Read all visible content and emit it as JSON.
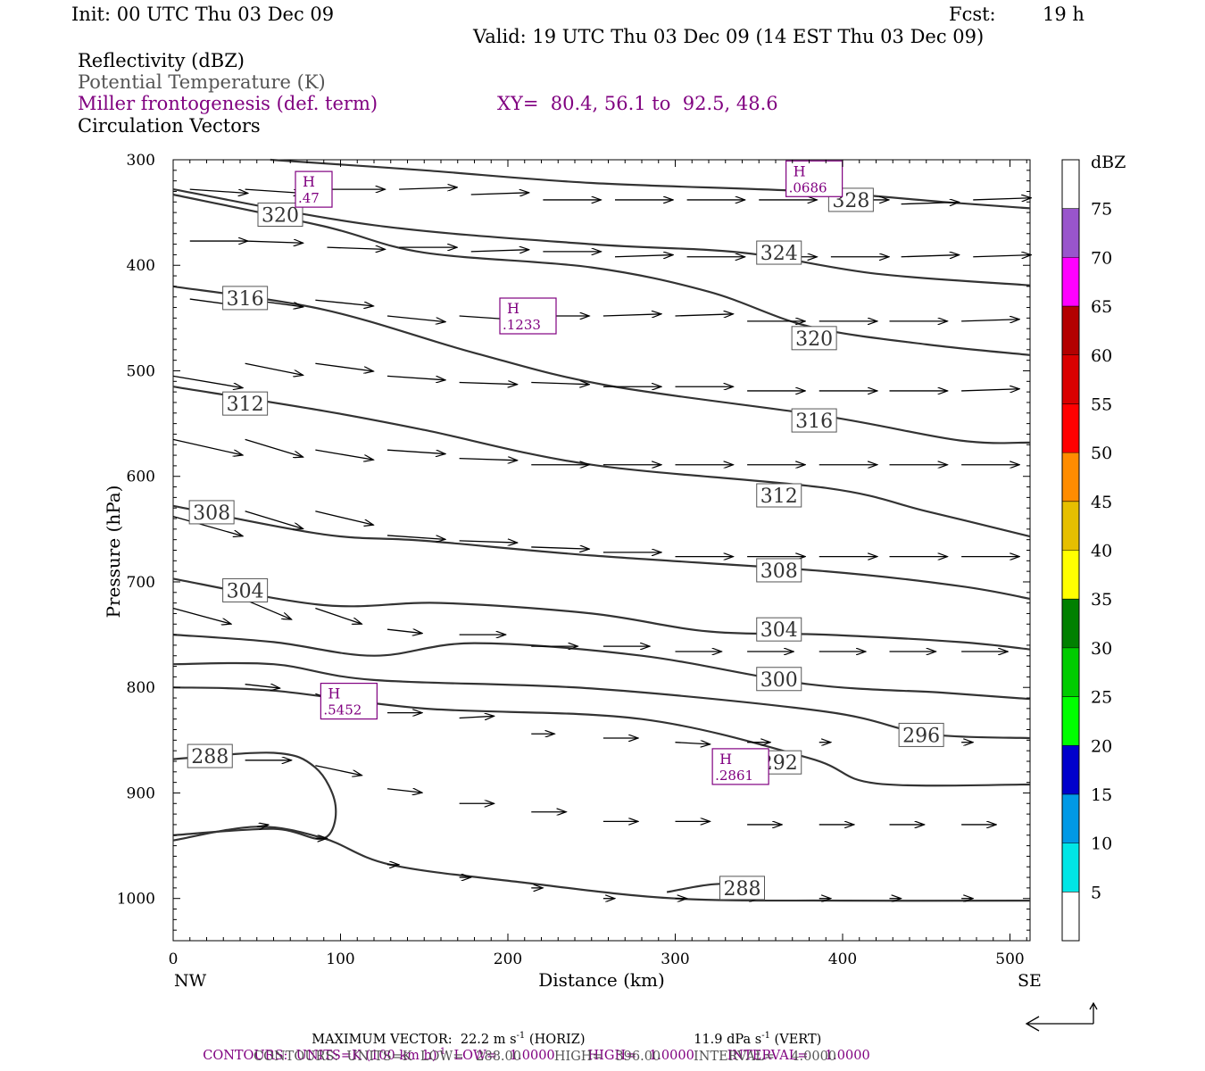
{
  "header": {
    "init": "Init: 00 UTC Thu 03 Dec 09",
    "fcst_label": "Fcst:",
    "fcst_value": "19 h",
    "valid": "Valid: 19 UTC Thu 03 Dec 09 (14 EST Thu 03 Dec 09)",
    "fields": [
      "Reflectivity (dBZ)",
      "Potential Temperature (K)",
      "Miller frontogenesis (def. term)",
      "Circulation Vectors"
    ],
    "xy": "XY=  80.4, 56.1 to  92.5, 48.6"
  },
  "colors": {
    "purple": "#800080",
    "gray_text": "#555555",
    "contour": "#333333",
    "vector": "#000000"
  },
  "chart_data": {
    "type": "cross-section",
    "xlabel": "Distance (km)",
    "ylabel": "Pressure (hPa)",
    "xlim": [
      0,
      512
    ],
    "ylim": [
      300,
      1040
    ],
    "y_log": false,
    "grid": false,
    "x_ticks": [
      0,
      100,
      200,
      300,
      400,
      500
    ],
    "y_ticks": [
      300,
      400,
      500,
      600,
      700,
      800,
      900,
      1000
    ],
    "endpoints": {
      "left": "NW",
      "right": "SE"
    },
    "theta_contours": [
      {
        "label": "328",
        "label_at": [
          405,
          338
        ],
        "points": [
          [
            58,
            300
          ],
          [
            150,
            310
          ],
          [
            250,
            322
          ],
          [
            380,
            330
          ],
          [
            460,
            340
          ],
          [
            512,
            346
          ]
        ]
      },
      {
        "label": "324",
        "label_at": [
          362,
          388
        ],
        "points": [
          [
            0,
            328
          ],
          [
            120,
            362
          ],
          [
            250,
            380
          ],
          [
            340,
            388
          ],
          [
            420,
            408
          ],
          [
            512,
            419
          ]
        ]
      },
      {
        "label": "320",
        "label_at": [
          64,
          352
        ],
        "points": [
          [
            0,
            333
          ],
          [
            90,
            363
          ],
          [
            150,
            388
          ],
          [
            250,
            402
          ],
          [
            320,
            425
          ],
          [
            380,
            458
          ],
          [
            450,
            475
          ],
          [
            512,
            485
          ]
        ]
      },
      {
        "label": "320",
        "label_at": [
          383,
          469
        ],
        "points": []
      },
      {
        "label": "316",
        "label_at": [
          43,
          431
        ],
        "points": [
          [
            0,
            420
          ],
          [
            90,
            442
          ],
          [
            180,
            483
          ],
          [
            260,
            514
          ],
          [
            390,
            543
          ],
          [
            470,
            566
          ],
          [
            512,
            568
          ]
        ]
      },
      {
        "label": "316",
        "label_at": [
          383,
          547
        ],
        "points": []
      },
      {
        "label": "312",
        "label_at": [
          43,
          531
        ],
        "points": [
          [
            0,
            515
          ],
          [
            90,
            538
          ],
          [
            150,
            556
          ],
          [
            250,
            589
          ],
          [
            390,
            611
          ],
          [
            450,
            633
          ],
          [
            512,
            657
          ]
        ]
      },
      {
        "label": "312",
        "label_at": [
          362,
          618
        ],
        "points": []
      },
      {
        "label": "308",
        "label_at": [
          23,
          634
        ],
        "points": [
          [
            0,
            628
          ],
          [
            90,
            655
          ],
          [
            150,
            661
          ],
          [
            250,
            675
          ],
          [
            390,
            690
          ],
          [
            470,
            704
          ],
          [
            512,
            716
          ]
        ]
      },
      {
        "label": "308",
        "label_at": [
          362,
          689
        ],
        "points": []
      },
      {
        "label": "304",
        "label_at": [
          43,
          708
        ],
        "points": [
          [
            0,
            697
          ],
          [
            90,
            722
          ],
          [
            160,
            720
          ],
          [
            250,
            730
          ],
          [
            320,
            747
          ],
          [
            390,
            750
          ],
          [
            470,
            757
          ],
          [
            512,
            764
          ]
        ]
      },
      {
        "label": "304",
        "label_at": [
          362,
          745
        ],
        "points": []
      },
      {
        "label": "300",
        "label_at": [
          362,
          792
        ],
        "points": [
          [
            0,
            750
          ],
          [
            60,
            757
          ],
          [
            120,
            770
          ],
          [
            180,
            758
          ],
          [
            280,
            770
          ],
          [
            380,
            797
          ],
          [
            460,
            805
          ],
          [
            512,
            811
          ]
        ]
      },
      {
        "label": "296",
        "label_at": [
          447,
          845
        ],
        "points": [
          [
            0,
            778
          ],
          [
            60,
            778
          ],
          [
            120,
            793
          ],
          [
            250,
            801
          ],
          [
            390,
            823
          ],
          [
            450,
            844
          ],
          [
            512,
            848
          ]
        ]
      },
      {
        "label": "292",
        "label_at": [
          362,
          871
        ],
        "points": [
          [
            0,
            800
          ],
          [
            60,
            803
          ],
          [
            150,
            820
          ],
          [
            280,
            830
          ],
          [
            380,
            867
          ],
          [
            420,
            891
          ],
          [
            512,
            892
          ]
        ]
      },
      {
        "label": "288",
        "label_at": [
          22,
          865
        ],
        "points": [
          [
            0,
            868
          ],
          [
            60,
            862
          ],
          [
            85,
            876
          ],
          [
            97,
            912
          ],
          [
            90,
            943
          ],
          [
            60,
            934
          ],
          [
            0,
            940
          ]
        ]
      },
      {
        "label": "288",
        "label_at": [
          340,
          990
        ],
        "points": [
          [
            0,
            945
          ],
          [
            50,
            932
          ],
          [
            90,
            943
          ],
          [
            130,
            968
          ],
          [
            210,
            985
          ],
          [
            300,
            1000
          ],
          [
            400,
            1002
          ],
          [
            512,
            1002
          ]
        ]
      },
      {
        "label": "",
        "label_at": [],
        "points": [
          [
            295,
            994
          ],
          [
            320,
            987
          ],
          [
            345,
            985
          ]
        ]
      }
    ],
    "frontogenesis_maxima": [
      {
        "label": "H",
        "value": ".47",
        "x": 84,
        "p": 328
      },
      {
        "label": "H",
        "value": ".0686",
        "x": 383,
        "p": 318
      },
      {
        "label": "H",
        "value": ".1233",
        "x": 212,
        "p": 448
      },
      {
        "label": "H",
        "value": ".5452",
        "x": 105,
        "p": 813
      },
      {
        "label": "H",
        "value": ".2861",
        "x": 339,
        "p": 875
      }
    ],
    "vectors": [
      {
        "x": 10,
        "p": 328,
        "u": 5,
        "w": 2
      },
      {
        "x": 43,
        "p": 328,
        "u": 5,
        "w": 2
      },
      {
        "x": 92,
        "p": 328,
        "u": 5,
        "w": 0
      },
      {
        "x": 135,
        "p": 328,
        "u": 5,
        "w": -1
      },
      {
        "x": 178,
        "p": 333,
        "u": 5,
        "w": -1
      },
      {
        "x": 221,
        "p": 338,
        "u": 5,
        "w": 0
      },
      {
        "x": 264,
        "p": 338,
        "u": 5,
        "w": 0
      },
      {
        "x": 307,
        "p": 338,
        "u": 5,
        "w": 0
      },
      {
        "x": 350,
        "p": 338,
        "u": 5,
        "w": 0
      },
      {
        "x": 393,
        "p": 338,
        "u": 5,
        "w": 0
      },
      {
        "x": 435,
        "p": 342,
        "u": 5,
        "w": -1
      },
      {
        "x": 478,
        "p": 338,
        "u": 5,
        "w": -1
      },
      {
        "x": 10,
        "p": 377,
        "u": 5,
        "w": 0
      },
      {
        "x": 43,
        "p": 377,
        "u": 5,
        "w": 1
      },
      {
        "x": 92,
        "p": 383,
        "u": 5,
        "w": 1
      },
      {
        "x": 135,
        "p": 383,
        "u": 5,
        "w": 0
      },
      {
        "x": 178,
        "p": 387,
        "u": 5,
        "w": -1
      },
      {
        "x": 221,
        "p": 387,
        "u": 5,
        "w": 0
      },
      {
        "x": 264,
        "p": 392,
        "u": 5,
        "w": -1
      },
      {
        "x": 307,
        "p": 392,
        "u": 5,
        "w": 0
      },
      {
        "x": 350,
        "p": 392,
        "u": 5,
        "w": 0
      },
      {
        "x": 393,
        "p": 392,
        "u": 5,
        "w": 0
      },
      {
        "x": 435,
        "p": 392,
        "u": 5,
        "w": -1
      },
      {
        "x": 478,
        "p": 392,
        "u": 5,
        "w": -1
      },
      {
        "x": 10,
        "p": 432,
        "u": 5,
        "w": 4
      },
      {
        "x": 43,
        "p": 432,
        "u": 5,
        "w": 4
      },
      {
        "x": 85,
        "p": 433,
        "u": 5,
        "w": 3
      },
      {
        "x": 128,
        "p": 448,
        "u": 5,
        "w": 3
      },
      {
        "x": 171,
        "p": 448,
        "u": 5,
        "w": 2
      },
      {
        "x": 214,
        "p": 448,
        "u": 5,
        "w": 0
      },
      {
        "x": 257,
        "p": 448,
        "u": 5,
        "w": -1
      },
      {
        "x": 300,
        "p": 448,
        "u": 5,
        "w": -1
      },
      {
        "x": 343,
        "p": 453,
        "u": 5,
        "w": 0
      },
      {
        "x": 386,
        "p": 453,
        "u": 5,
        "w": 0
      },
      {
        "x": 428,
        "p": 453,
        "u": 5,
        "w": 0
      },
      {
        "x": 471,
        "p": 453,
        "u": 5,
        "w": -1
      },
      {
        "x": 0,
        "p": 505,
        "u": 6,
        "w": 6
      },
      {
        "x": 43,
        "p": 493,
        "u": 5,
        "w": 6
      },
      {
        "x": 85,
        "p": 493,
        "u": 5,
        "w": 4
      },
      {
        "x": 128,
        "p": 505,
        "u": 5,
        "w": 2
      },
      {
        "x": 171,
        "p": 511,
        "u": 5,
        "w": 1
      },
      {
        "x": 214,
        "p": 511,
        "u": 5,
        "w": 1
      },
      {
        "x": 257,
        "p": 515,
        "u": 5,
        "w": 0
      },
      {
        "x": 300,
        "p": 515,
        "u": 5,
        "w": 0
      },
      {
        "x": 343,
        "p": 519,
        "u": 5,
        "w": 0
      },
      {
        "x": 386,
        "p": 519,
        "u": 5,
        "w": 0
      },
      {
        "x": 428,
        "p": 519,
        "u": 5,
        "w": 0
      },
      {
        "x": 471,
        "p": 519,
        "u": 5,
        "w": -1
      },
      {
        "x": 0,
        "p": 565,
        "u": 6,
        "w": 8
      },
      {
        "x": 43,
        "p": 565,
        "u": 5,
        "w": 9
      },
      {
        "x": 85,
        "p": 575,
        "u": 5,
        "w": 5
      },
      {
        "x": 128,
        "p": 575,
        "u": 5,
        "w": 2
      },
      {
        "x": 171,
        "p": 583,
        "u": 5,
        "w": 1
      },
      {
        "x": 214,
        "p": 589,
        "u": 5,
        "w": 0
      },
      {
        "x": 257,
        "p": 589,
        "u": 5,
        "w": 0
      },
      {
        "x": 300,
        "p": 589,
        "u": 5,
        "w": 0
      },
      {
        "x": 343,
        "p": 589,
        "u": 5,
        "w": 0
      },
      {
        "x": 386,
        "p": 589,
        "u": 5,
        "w": 0
      },
      {
        "x": 428,
        "p": 589,
        "u": 5,
        "w": 0
      },
      {
        "x": 471,
        "p": 589,
        "u": 5,
        "w": 0
      },
      {
        "x": 0,
        "p": 638,
        "u": 6,
        "w": 10
      },
      {
        "x": 43,
        "p": 633,
        "u": 5,
        "w": 9
      },
      {
        "x": 85,
        "p": 633,
        "u": 5,
        "w": 7
      },
      {
        "x": 128,
        "p": 656,
        "u": 5,
        "w": 2
      },
      {
        "x": 171,
        "p": 661,
        "u": 5,
        "w": 1
      },
      {
        "x": 214,
        "p": 667,
        "u": 5,
        "w": 1
      },
      {
        "x": 257,
        "p": 672,
        "u": 5,
        "w": 0
      },
      {
        "x": 300,
        "p": 676,
        "u": 5,
        "w": 0
      },
      {
        "x": 343,
        "p": 676,
        "u": 5,
        "w": 0
      },
      {
        "x": 386,
        "p": 676,
        "u": 5,
        "w": 0
      },
      {
        "x": 428,
        "p": 676,
        "u": 5,
        "w": 0
      },
      {
        "x": 471,
        "p": 676,
        "u": 5,
        "w": 0
      },
      {
        "x": 0,
        "p": 725,
        "u": 5,
        "w": 8
      },
      {
        "x": 43,
        "p": 717,
        "u": 4,
        "w": 10
      },
      {
        "x": 85,
        "p": 725,
        "u": 4,
        "w": 8
      },
      {
        "x": 128,
        "p": 745,
        "u": 3,
        "w": 2
      },
      {
        "x": 171,
        "p": 750,
        "u": 4,
        "w": 0
      },
      {
        "x": 214,
        "p": 761,
        "u": 4,
        "w": 0
      },
      {
        "x": 257,
        "p": 761,
        "u": 4,
        "w": 0
      },
      {
        "x": 300,
        "p": 766,
        "u": 4,
        "w": 0
      },
      {
        "x": 343,
        "p": 766,
        "u": 4,
        "w": 0
      },
      {
        "x": 386,
        "p": 766,
        "u": 4,
        "w": 0
      },
      {
        "x": 428,
        "p": 766,
        "u": 4,
        "w": 0
      },
      {
        "x": 471,
        "p": 766,
        "u": 4,
        "w": 0
      },
      {
        "x": 43,
        "p": 797,
        "u": 3,
        "w": 2
      },
      {
        "x": 85,
        "p": 806,
        "u": 3,
        "w": 6
      },
      {
        "x": 128,
        "p": 824,
        "u": 3,
        "w": 0
      },
      {
        "x": 171,
        "p": 829,
        "u": 3,
        "w": -1
      },
      {
        "x": 214,
        "p": 844,
        "u": 2,
        "w": 0
      },
      {
        "x": 257,
        "p": 848,
        "u": 3,
        "w": 0
      },
      {
        "x": 300,
        "p": 852,
        "u": 3,
        "w": 1
      },
      {
        "x": 343,
        "p": 852,
        "u": 2,
        "w": 0
      },
      {
        "x": 386,
        "p": 852,
        "u": 1,
        "w": 0
      },
      {
        "x": 471,
        "p": 852,
        "u": 1,
        "w": 0
      },
      {
        "x": 43,
        "p": 869,
        "u": 4,
        "w": 0
      },
      {
        "x": 85,
        "p": 874,
        "u": 4,
        "w": 5
      },
      {
        "x": 128,
        "p": 896,
        "u": 3,
        "w": 2
      },
      {
        "x": 171,
        "p": 910,
        "u": 3,
        "w": 0
      },
      {
        "x": 214,
        "p": 918,
        "u": 3,
        "w": 0
      },
      {
        "x": 257,
        "p": 927,
        "u": 3,
        "w": 0
      },
      {
        "x": 300,
        "p": 927,
        "u": 3,
        "w": 0
      },
      {
        "x": 343,
        "p": 930,
        "u": 3,
        "w": 0
      },
      {
        "x": 386,
        "p": 930,
        "u": 3,
        "w": 0
      },
      {
        "x": 428,
        "p": 930,
        "u": 3,
        "w": 0
      },
      {
        "x": 471,
        "p": 930,
        "u": 3,
        "w": 0
      },
      {
        "x": 50,
        "p": 932,
        "u": 1,
        "w": -1
      },
      {
        "x": 85,
        "p": 943,
        "u": 1,
        "w": 0
      },
      {
        "x": 128,
        "p": 968,
        "u": 1,
        "w": 0
      },
      {
        "x": 171,
        "p": 980,
        "u": 1,
        "w": 0
      },
      {
        "x": 214,
        "p": 990,
        "u": 1,
        "w": 0
      },
      {
        "x": 257,
        "p": 1000,
        "u": 1,
        "w": 0
      },
      {
        "x": 300,
        "p": 1000,
        "u": 1,
        "w": 0
      },
      {
        "x": 343,
        "p": 1000,
        "u": 1,
        "w": 0
      },
      {
        "x": 386,
        "p": 1000,
        "u": 1,
        "w": 0
      },
      {
        "x": 428,
        "p": 1000,
        "u": 1,
        "w": 0
      },
      {
        "x": 471,
        "p": 1000,
        "u": 1,
        "w": 0
      }
    ],
    "colorbar": {
      "title": "dBZ",
      "ticks": [
        "5",
        "10",
        "15",
        "20",
        "25",
        "30",
        "35",
        "40",
        "45",
        "50",
        "55",
        "60",
        "65",
        "70",
        "75"
      ],
      "colors": [
        "#ffffff",
        "#00e6e6",
        "#0099e6",
        "#0000cc",
        "#00ff00",
        "#00cc00",
        "#008000",
        "#ffff00",
        "#e6bf00",
        "#ff8c00",
        "#ff0000",
        "#d90000",
        "#b30000",
        "#ff00ff",
        "#9955cc",
        "#ffffff"
      ]
    }
  },
  "footer": {
    "line1a": "MAXIMUM VECTOR:  22.2 m s",
    "line1a_sup": "-1",
    "line1b": " (HORIZ)",
    "line1c": "11.9 dPa s",
    "line1c_sup": "-1",
    "line1d": " (VERT)",
    "line2a": "CONTOURS:  UNITS=K (100 km h)",
    "line2a_sup": "-1",
    "line2b": "  LOW=   1.0000        HIGH=   1.0000        INTERVAL=    1.0000",
    "line3": "CONTOURS:  UNITS=K  LOW=   288.00        HIGH=   396.00        INTERVAL=    4.0000"
  }
}
